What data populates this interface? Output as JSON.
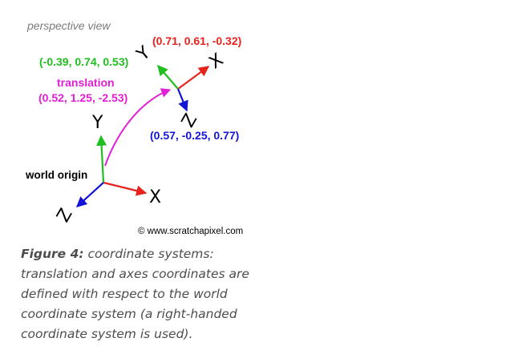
{
  "view_label": "perspective view",
  "world": {
    "label": "world origin",
    "axis_x": "X",
    "axis_y": "Y",
    "axis_z": "Z"
  },
  "local": {
    "axis_x": "X",
    "axis_y": "Y",
    "axis_z": "Z",
    "x_coords": "(0.71, 0.61, -0.32)",
    "y_coords": "(-0.39, 0.74, 0.53)",
    "z_coords": "(0.57, -0.25, 0.77)"
  },
  "translation": {
    "label": "translation",
    "coords": "(0.52, 1.25, -2.53)"
  },
  "copyright": "© www.scratchapixel.com",
  "caption": {
    "title": "Figure 4:",
    "text": " coordinate systems: translation and axes coordinates are defined with respect to the world coordinate system (a right-handed coordinate system is used)."
  },
  "colors": {
    "x_axis": "#e8231e",
    "y_axis": "#1fbf1f",
    "z_axis": "#1414d6",
    "translation": "#e01fd6",
    "view_label": "#7a7a7a",
    "caption_text": "#4d4d4d"
  }
}
